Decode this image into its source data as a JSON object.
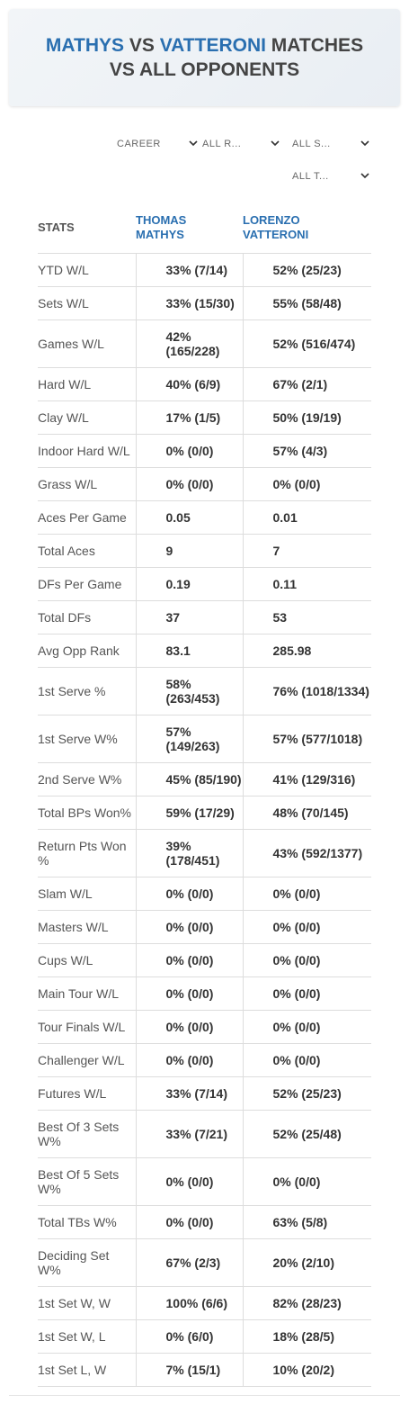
{
  "header": {
    "name1": "MATHYS",
    "vs": "VS",
    "name2": "VATTERONI",
    "rest": "MATCHES VS ALL OPPONENTS"
  },
  "filters": [
    "CAREER",
    "ALL R...",
    "ALL S...",
    "ALL T..."
  ],
  "table": {
    "columns": [
      "STATS",
      "THOMAS MATHYS",
      "LORENZO VATTERONI"
    ],
    "rows": [
      [
        "YTD W/L",
        "33% (7/14)",
        "52% (25/23)"
      ],
      [
        "Sets W/L",
        "33% (15/30)",
        "55% (58/48)"
      ],
      [
        "Games W/L",
        "42% (165/228)",
        "52% (516/474)"
      ],
      [
        "Hard W/L",
        "40% (6/9)",
        "67% (2/1)"
      ],
      [
        "Clay W/L",
        "17% (1/5)",
        "50% (19/19)"
      ],
      [
        "Indoor Hard W/L",
        "0% (0/0)",
        "57% (4/3)"
      ],
      [
        "Grass W/L",
        "0% (0/0)",
        "0% (0/0)"
      ],
      [
        "Aces Per Game",
        "0.05",
        "0.01"
      ],
      [
        "Total Aces",
        "9",
        "7"
      ],
      [
        "DFs Per Game",
        "0.19",
        "0.11"
      ],
      [
        "Total DFs",
        "37",
        "53"
      ],
      [
        "Avg Opp Rank",
        "83.1",
        "285.98"
      ],
      [
        "1st Serve %",
        "58% (263/453)",
        "76% (1018/1334)"
      ],
      [
        "1st Serve W%",
        "57% (149/263)",
        "57% (577/1018)"
      ],
      [
        "2nd Serve W%",
        "45% (85/190)",
        "41% (129/316)"
      ],
      [
        "Total BPs Won%",
        "59% (17/29)",
        "48% (70/145)"
      ],
      [
        "Return Pts Won %",
        "39% (178/451)",
        "43% (592/1377)"
      ],
      [
        "Slam W/L",
        "0% (0/0)",
        "0% (0/0)"
      ],
      [
        "Masters W/L",
        "0% (0/0)",
        "0% (0/0)"
      ],
      [
        "Cups W/L",
        "0% (0/0)",
        "0% (0/0)"
      ],
      [
        "Main Tour W/L",
        "0% (0/0)",
        "0% (0/0)"
      ],
      [
        "Tour Finals W/L",
        "0% (0/0)",
        "0% (0/0)"
      ],
      [
        "Challenger W/L",
        "0% (0/0)",
        "0% (0/0)"
      ],
      [
        "Futures W/L",
        "33% (7/14)",
        "52% (25/23)"
      ],
      [
        "Best Of 3 Sets W%",
        "33% (7/21)",
        "52% (25/48)"
      ],
      [
        "Best Of 5 Sets W%",
        "0% (0/0)",
        "0% (0/0)"
      ],
      [
        "Total TBs W%",
        "0% (0/0)",
        "63% (5/8)"
      ],
      [
        "Deciding Set W%",
        "67% (2/3)",
        "20% (2/10)"
      ],
      [
        "1st Set W, W",
        "100% (6/6)",
        "82% (28/23)"
      ],
      [
        "1st Set W, L",
        "0% (6/0)",
        "18% (28/5)"
      ],
      [
        "1st Set L, W",
        "7% (15/1)",
        "10% (20/2)"
      ]
    ]
  }
}
